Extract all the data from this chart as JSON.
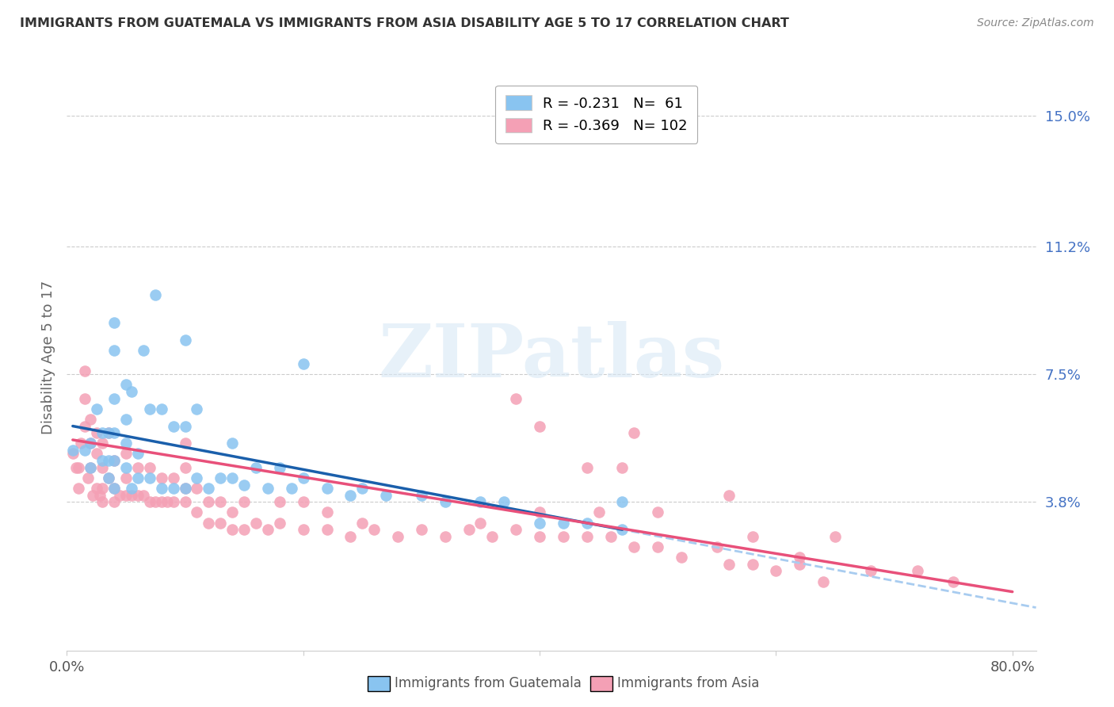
{
  "title": "IMMIGRANTS FROM GUATEMALA VS IMMIGRANTS FROM ASIA DISABILITY AGE 5 TO 17 CORRELATION CHART",
  "source": "Source: ZipAtlas.com",
  "ylabel": "Disability Age 5 to 17",
  "xlim": [
    0.0,
    0.82
  ],
  "ylim": [
    -0.005,
    0.165
  ],
  "xticks": [
    0.0,
    0.2,
    0.4,
    0.6,
    0.8
  ],
  "xticklabels": [
    "0.0%",
    "",
    "",
    "",
    "80.0%"
  ],
  "yticks_right": [
    0.038,
    0.075,
    0.112,
    0.15
  ],
  "yticklabels_right": [
    "3.8%",
    "7.5%",
    "11.2%",
    "15.0%"
  ],
  "color_guatemala": "#89C4F0",
  "color_asia": "#F4A0B5",
  "color_trendline_guatemala": "#1A5FAB",
  "color_trendline_asia": "#E8507A",
  "color_trendline_dashed": "#A8CCF0",
  "R_guatemala": -0.231,
  "N_guatemala": 61,
  "R_asia": -0.369,
  "N_asia": 102,
  "legend_label_guatemala": "Immigrants from Guatemala",
  "legend_label_asia": "Immigrants from Asia",
  "watermark": "ZIPatlas",
  "trendline_g_x0": 0.005,
  "trendline_g_y0": 0.06,
  "trendline_g_x1": 0.47,
  "trendline_g_y1": 0.03,
  "trendline_a_x0": 0.005,
  "trendline_a_y0": 0.056,
  "trendline_a_x1": 0.8,
  "trendline_a_y1": 0.012,
  "trendline_dash_x0": 0.4,
  "trendline_dash_x1": 0.82,
  "guatemala_x": [
    0.005,
    0.015,
    0.02,
    0.02,
    0.025,
    0.03,
    0.03,
    0.035,
    0.035,
    0.035,
    0.04,
    0.04,
    0.04,
    0.04,
    0.04,
    0.04,
    0.05,
    0.05,
    0.05,
    0.05,
    0.055,
    0.055,
    0.06,
    0.06,
    0.065,
    0.07,
    0.07,
    0.075,
    0.08,
    0.08,
    0.09,
    0.09,
    0.1,
    0.1,
    0.1,
    0.11,
    0.11,
    0.12,
    0.13,
    0.14,
    0.14,
    0.15,
    0.16,
    0.17,
    0.18,
    0.19,
    0.2,
    0.22,
    0.24,
    0.25,
    0.27,
    0.3,
    0.32,
    0.35,
    0.37,
    0.4,
    0.42,
    0.44,
    0.47,
    0.47,
    0.2
  ],
  "guatemala_y": [
    0.053,
    0.053,
    0.048,
    0.055,
    0.065,
    0.05,
    0.058,
    0.045,
    0.05,
    0.058,
    0.042,
    0.05,
    0.058,
    0.068,
    0.082,
    0.09,
    0.048,
    0.055,
    0.062,
    0.072,
    0.042,
    0.07,
    0.045,
    0.052,
    0.082,
    0.045,
    0.065,
    0.098,
    0.042,
    0.065,
    0.042,
    0.06,
    0.042,
    0.06,
    0.085,
    0.045,
    0.065,
    0.042,
    0.045,
    0.045,
    0.055,
    0.043,
    0.048,
    0.042,
    0.048,
    0.042,
    0.045,
    0.042,
    0.04,
    0.042,
    0.04,
    0.04,
    0.038,
    0.038,
    0.038,
    0.032,
    0.032,
    0.032,
    0.03,
    0.038,
    0.078
  ],
  "asia_x": [
    0.005,
    0.008,
    0.01,
    0.01,
    0.012,
    0.015,
    0.015,
    0.015,
    0.018,
    0.02,
    0.02,
    0.02,
    0.022,
    0.025,
    0.025,
    0.025,
    0.028,
    0.03,
    0.03,
    0.03,
    0.03,
    0.035,
    0.035,
    0.04,
    0.04,
    0.04,
    0.045,
    0.05,
    0.05,
    0.05,
    0.055,
    0.06,
    0.06,
    0.065,
    0.07,
    0.07,
    0.075,
    0.08,
    0.08,
    0.085,
    0.09,
    0.09,
    0.1,
    0.1,
    0.1,
    0.1,
    0.11,
    0.11,
    0.12,
    0.12,
    0.13,
    0.13,
    0.14,
    0.14,
    0.15,
    0.15,
    0.16,
    0.17,
    0.18,
    0.18,
    0.2,
    0.2,
    0.22,
    0.22,
    0.24,
    0.25,
    0.26,
    0.28,
    0.3,
    0.32,
    0.34,
    0.35,
    0.36,
    0.38,
    0.4,
    0.4,
    0.42,
    0.44,
    0.45,
    0.46,
    0.47,
    0.48,
    0.5,
    0.52,
    0.55,
    0.56,
    0.58,
    0.6,
    0.62,
    0.64,
    0.5,
    0.62,
    0.44,
    0.58,
    0.4,
    0.65,
    0.56,
    0.68,
    0.72,
    0.75,
    0.38,
    0.48
  ],
  "asia_y": [
    0.052,
    0.048,
    0.042,
    0.048,
    0.055,
    0.06,
    0.068,
    0.076,
    0.045,
    0.048,
    0.055,
    0.062,
    0.04,
    0.042,
    0.052,
    0.058,
    0.04,
    0.038,
    0.042,
    0.048,
    0.055,
    0.045,
    0.058,
    0.038,
    0.042,
    0.05,
    0.04,
    0.04,
    0.045,
    0.052,
    0.04,
    0.04,
    0.048,
    0.04,
    0.038,
    0.048,
    0.038,
    0.038,
    0.045,
    0.038,
    0.038,
    0.045,
    0.038,
    0.042,
    0.048,
    0.055,
    0.035,
    0.042,
    0.032,
    0.038,
    0.032,
    0.038,
    0.03,
    0.035,
    0.03,
    0.038,
    0.032,
    0.03,
    0.032,
    0.038,
    0.03,
    0.038,
    0.03,
    0.035,
    0.028,
    0.032,
    0.03,
    0.028,
    0.03,
    0.028,
    0.03,
    0.032,
    0.028,
    0.03,
    0.028,
    0.035,
    0.028,
    0.028,
    0.035,
    0.028,
    0.048,
    0.025,
    0.025,
    0.022,
    0.025,
    0.02,
    0.02,
    0.018,
    0.02,
    0.015,
    0.035,
    0.022,
    0.048,
    0.028,
    0.06,
    0.028,
    0.04,
    0.018,
    0.018,
    0.015,
    0.068,
    0.058
  ]
}
